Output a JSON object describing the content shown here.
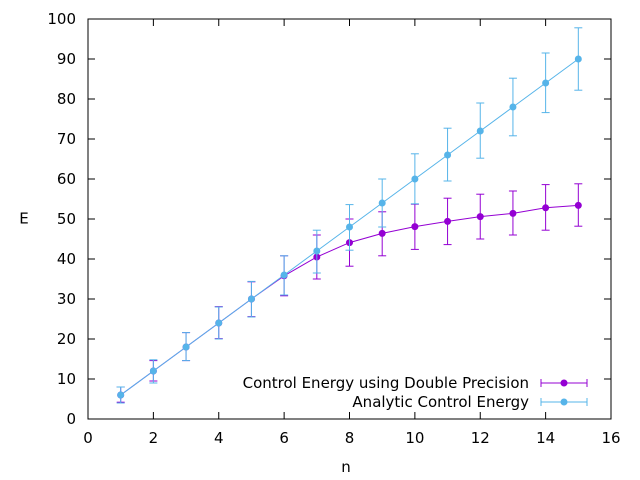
{
  "chart_data": {
    "type": "line",
    "title": "",
    "xlabel": "n",
    "ylabel": "E",
    "xlim": [
      0,
      16
    ],
    "ylim": [
      0,
      100
    ],
    "xticks": [
      0,
      2,
      4,
      6,
      8,
      10,
      12,
      14,
      16
    ],
    "yticks": [
      0,
      10,
      20,
      30,
      40,
      50,
      60,
      70,
      80,
      90,
      100
    ],
    "grid": false,
    "legend_position": "bottom-right",
    "series": [
      {
        "name": "Control Energy using Double Precision",
        "color": "#9400d3",
        "x": [
          1,
          2,
          3,
          4,
          5,
          6,
          7,
          8,
          9,
          10,
          11,
          12,
          13,
          14,
          15
        ],
        "y": [
          6,
          12,
          18,
          24,
          30,
          35.8,
          40.5,
          44.1,
          46.4,
          48.1,
          49.4,
          50.6,
          51.4,
          52.8,
          53.4
        ],
        "y_low": [
          4.2,
          9.5,
          14.6,
          20.1,
          25.6,
          30.8,
          35.0,
          38.2,
          40.8,
          42.4,
          43.6,
          45.0,
          46.0,
          47.2,
          48.2
        ],
        "y_high": [
          8.0,
          14.6,
          21.6,
          28.1,
          34.3,
          40.8,
          46.0,
          50.0,
          51.8,
          53.7,
          55.2,
          56.2,
          57.0,
          58.6,
          58.8
        ]
      },
      {
        "name": "Analytic Control Energy",
        "color": "#56b4e9",
        "x": [
          1,
          2,
          3,
          4,
          5,
          6,
          7,
          8,
          9,
          10,
          11,
          12,
          13,
          14,
          15
        ],
        "y": [
          6,
          12,
          18,
          24,
          30,
          36,
          42,
          48,
          54,
          60,
          66,
          72,
          78,
          84,
          90
        ],
        "y_low": [
          4.0,
          9.0,
          14.6,
          20.0,
          25.5,
          31.0,
          36.5,
          42.2,
          48.0,
          53.8,
          59.5,
          65.2,
          70.8,
          76.6,
          82.2
        ],
        "y_high": [
          8.0,
          14.8,
          21.6,
          28.0,
          34.4,
          40.8,
          47.2,
          53.6,
          60.0,
          66.3,
          72.7,
          79.0,
          85.2,
          91.5,
          97.8
        ]
      }
    ]
  }
}
